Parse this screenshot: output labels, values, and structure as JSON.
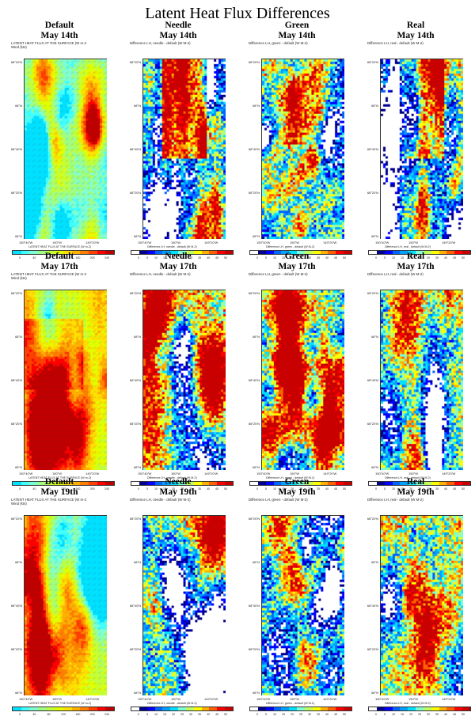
{
  "title": "Latent Heat Flux Differences",
  "lat_labels": [
    "68°20'N",
    "68°N",
    "68°40'N",
    "68°20'N",
    "68°N"
  ],
  "lon_labels": [
    "150°40'W",
    "150°W",
    "149°20'W"
  ],
  "default_colorbar": {
    "ticks": [
      "0",
      "40",
      "80",
      "120",
      "160",
      "200",
      "240"
    ],
    "caption": "LATENT HEAT FLUX AT THE SURFACE (W m-2)"
  },
  "diff_colorbar": {
    "ticks": [
      "0",
      "5",
      "10",
      "15",
      "20",
      "25",
      "30",
      "35",
      "40",
      "45",
      "50"
    ]
  },
  "colormap": [
    "#ffffff",
    "#00008c",
    "#0000ff",
    "#0064ff",
    "#00a0ff",
    "#00e0ff",
    "#80ffd0",
    "#c0ff60",
    "#ffff00",
    "#ffb000",
    "#ff6000",
    "#ff0000",
    "#c80000"
  ],
  "default_colormap": [
    "#00e0ff",
    "#40ffff",
    "#80ffd0",
    "#a0ff80",
    "#c0ff40",
    "#e0ff00",
    "#ffe000",
    "#ffb000",
    "#ff8000",
    "#ff4000",
    "#ff0000",
    "#c00000"
  ],
  "rows": [
    {
      "date": "May 14th",
      "panels": [
        {
          "scenario": "Default",
          "subtitle_1": "LATENT HEAT FLUX AT THE SURFACE (W m-2",
          "subtitle_2": "Wind (kts)",
          "caption": "LATENT HEAT FLUX AT THE SURFACE (W m-2)"
        },
        {
          "scenario": "Needle",
          "subtitle_1": "Difference LH, needle - default (W M-2)",
          "caption": "Difference LH, needle - default (W M-2)"
        },
        {
          "scenario": "Green",
          "subtitle_1": "Difference LH, green - default (W M-2)",
          "caption": "Difference LH, green - default (W M-2)"
        },
        {
          "scenario": "Real",
          "subtitle_1": "Difference LH, real - default (W M-2)",
          "caption": "Difference LH, real - default (W M-2)"
        }
      ]
    },
    {
      "date": "May 17th",
      "panels": [
        {
          "scenario": "Default",
          "subtitle_1": "LATENT HEAT FLUX AT THE SURFACE (W m-2",
          "subtitle_2": "Wind (kts)",
          "caption": "LATENT HEAT FLUX AT THE SURFACE (W m-2)"
        },
        {
          "scenario": "Needle",
          "subtitle_1": "Difference LH, needle - default (W M-2)",
          "caption": "Difference LH, needle - default (W M-2)"
        },
        {
          "scenario": "Green",
          "subtitle_1": "Difference LH, green - default (W M-2)",
          "caption": "Difference LH, green - default (W M-2)"
        },
        {
          "scenario": "Real",
          "subtitle_1": "Difference LH, real - default (W M-2)",
          "caption": "Difference LH, real - default (W M-2)"
        }
      ]
    },
    {
      "date": "May 19th",
      "panels": [
        {
          "scenario": "Default",
          "subtitle_1": "LATENT HEAT FLUX AT THE SURFACE (W m-2",
          "subtitle_2": "Wind (kts)",
          "caption": "LATENT HEAT FLUX AT THE SURFACE (W m-2)"
        },
        {
          "scenario": "Needle",
          "subtitle_1": "Difference LH, needle - default (W M-2)",
          "caption": "Difference LH, needle - default (W M-2)"
        },
        {
          "scenario": "Green",
          "subtitle_1": "Difference LH, green - default (W M-2)",
          "caption": "Difference LH, green - default (W M-2)"
        },
        {
          "scenario": "Real",
          "subtitle_1": "Difference LH, real - default (W M-2)",
          "caption": "Difference LH, real - default (W M-2)"
        }
      ]
    }
  ]
}
